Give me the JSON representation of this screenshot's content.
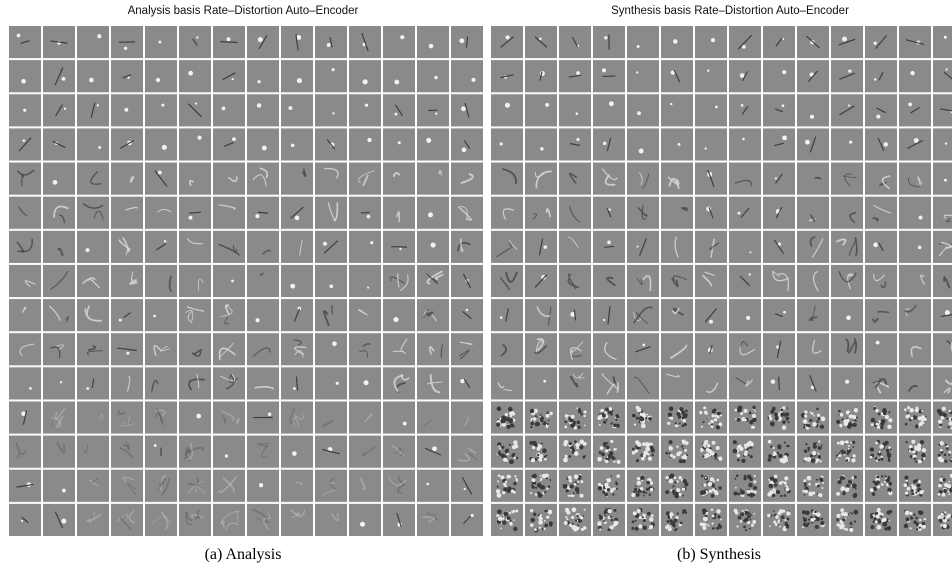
{
  "panels": [
    {
      "id": "analysis",
      "title": "Analysis basis Rate–Distortion Auto–Encoder",
      "caption": "(a)  Analysis",
      "filled_tiles": 214,
      "cols": 14,
      "rows": 15
    },
    {
      "id": "synthesis",
      "title": "Synthesis basis Rate–Distortion Auto–Encoder",
      "caption": "(b)  Synthesis",
      "filled_tiles": 214,
      "cols": 14,
      "rows": 15
    }
  ],
  "colors": {
    "tile_background": "#8a8a8a",
    "grid_line": "#ffffff",
    "empty_area": "#c4c4c4"
  }
}
